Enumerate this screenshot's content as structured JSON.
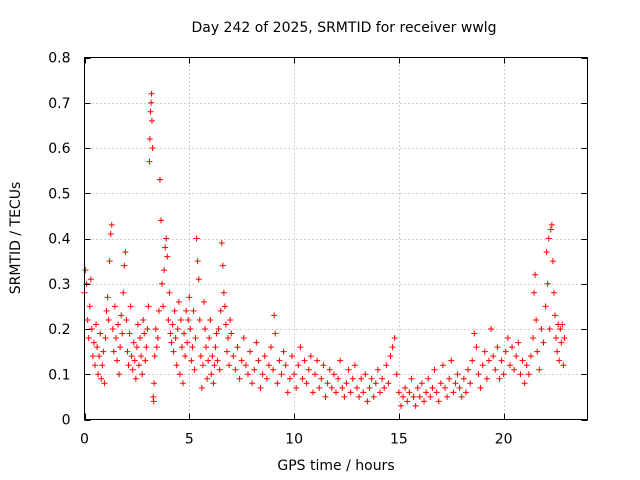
{
  "chart_data": {
    "type": "scatter",
    "title": "Day 242 of 2025, SRMTID for receiver wwlg",
    "xlabel": "GPS time / hours",
    "ylabel": "SRMTID / TECUs",
    "xlim": [
      0,
      24
    ],
    "ylim": [
      0,
      0.8
    ],
    "xticks": [
      0,
      5,
      10,
      15,
      20
    ],
    "xtick_labels": [
      "0",
      "5",
      "10",
      "15",
      "20"
    ],
    "yticks": [
      0,
      0.1,
      0.2,
      0.3,
      0.4,
      0.5,
      0.6,
      0.7,
      0.8
    ],
    "ytick_labels": [
      "0",
      "0.1",
      "0.2",
      "0.3",
      "0.4",
      "0.5",
      "0.6",
      "0.7",
      "0.8"
    ],
    "grid": true,
    "marker": "plus",
    "color": "#ff0000",
    "series": [
      {
        "name": "SRMTID",
        "points": [
          [
            0.0,
            0.28
          ],
          [
            0.05,
            0.33
          ],
          [
            0.1,
            0.3
          ],
          [
            0.15,
            0.22
          ],
          [
            0.2,
            0.18
          ],
          [
            0.25,
            0.25
          ],
          [
            0.3,
            0.31
          ],
          [
            0.35,
            0.2
          ],
          [
            0.4,
            0.14
          ],
          [
            0.45,
            0.17
          ],
          [
            0.5,
            0.12
          ],
          [
            0.55,
            0.21
          ],
          [
            0.6,
            0.16
          ],
          [
            0.65,
            0.1
          ],
          [
            0.7,
            0.14
          ],
          [
            0.75,
            0.19
          ],
          [
            0.8,
            0.09
          ],
          [
            0.85,
            0.12
          ],
          [
            0.9,
            0.15
          ],
          [
            0.95,
            0.08
          ],
          [
            1.0,
            0.18
          ],
          [
            1.05,
            0.24
          ],
          [
            1.1,
            0.27
          ],
          [
            1.15,
            0.22
          ],
          [
            1.2,
            0.35
          ],
          [
            1.25,
            0.41
          ],
          [
            1.3,
            0.43
          ],
          [
            1.35,
            0.2
          ],
          [
            1.4,
            0.15
          ],
          [
            1.45,
            0.25
          ],
          [
            1.5,
            0.18
          ],
          [
            1.55,
            0.13
          ],
          [
            1.6,
            0.21
          ],
          [
            1.65,
            0.1
          ],
          [
            1.7,
            0.16
          ],
          [
            1.75,
            0.23
          ],
          [
            1.8,
            0.19
          ],
          [
            1.85,
            0.28
          ],
          [
            1.9,
            0.34
          ],
          [
            1.95,
            0.37
          ],
          [
            2.0,
            0.22
          ],
          [
            2.05,
            0.15
          ],
          [
            2.1,
            0.12
          ],
          [
            2.15,
            0.19
          ],
          [
            2.2,
            0.25
          ],
          [
            2.25,
            0.14
          ],
          [
            2.3,
            0.11
          ],
          [
            2.35,
            0.17
          ],
          [
            2.4,
            0.13
          ],
          [
            2.45,
            0.09
          ],
          [
            2.5,
            0.16
          ],
          [
            2.55,
            0.21
          ],
          [
            2.6,
            0.12
          ],
          [
            2.65,
            0.18
          ],
          [
            2.7,
            0.14
          ],
          [
            2.75,
            0.1
          ],
          [
            2.8,
            0.22
          ],
          [
            2.85,
            0.19
          ],
          [
            2.9,
            0.13
          ],
          [
            2.95,
            0.16
          ],
          [
            3.0,
            0.2
          ],
          [
            3.05,
            0.25
          ],
          [
            3.1,
            0.57
          ],
          [
            3.12,
            0.62
          ],
          [
            3.15,
            0.68
          ],
          [
            3.18,
            0.7
          ],
          [
            3.2,
            0.72
          ],
          [
            3.22,
            0.66
          ],
          [
            3.25,
            0.6
          ],
          [
            3.28,
            0.05
          ],
          [
            3.3,
            0.04
          ],
          [
            3.32,
            0.08
          ],
          [
            3.35,
            0.14
          ],
          [
            3.4,
            0.2
          ],
          [
            3.45,
            0.16
          ],
          [
            3.5,
            0.18
          ],
          [
            3.55,
            0.24
          ],
          [
            3.6,
            0.53
          ],
          [
            3.65,
            0.44
          ],
          [
            3.7,
            0.3
          ],
          [
            3.75,
            0.25
          ],
          [
            3.8,
            0.33
          ],
          [
            3.85,
            0.38
          ],
          [
            3.9,
            0.4
          ],
          [
            3.95,
            0.36
          ],
          [
            4.0,
            0.22
          ],
          [
            4.05,
            0.28
          ],
          [
            4.1,
            0.19
          ],
          [
            4.15,
            0.17
          ],
          [
            4.2,
            0.21
          ],
          [
            4.25,
            0.15
          ],
          [
            4.3,
            0.24
          ],
          [
            4.35,
            0.18
          ],
          [
            4.4,
            0.12
          ],
          [
            4.45,
            0.2
          ],
          [
            4.5,
            0.26
          ],
          [
            4.55,
            0.1
          ],
          [
            4.6,
            0.22
          ],
          [
            4.65,
            0.16
          ],
          [
            4.7,
            0.08
          ],
          [
            4.75,
            0.19
          ],
          [
            4.8,
            0.14
          ],
          [
            4.85,
            0.24
          ],
          [
            4.9,
            0.17
          ],
          [
            4.95,
            0.22
          ],
          [
            5.0,
            0.27
          ],
          [
            5.05,
            0.2
          ],
          [
            5.1,
            0.13
          ],
          [
            5.15,
            0.16
          ],
          [
            5.2,
            0.24
          ],
          [
            5.25,
            0.11
          ],
          [
            5.3,
            0.18
          ],
          [
            5.35,
            0.4
          ],
          [
            5.4,
            0.35
          ],
          [
            5.45,
            0.31
          ],
          [
            5.5,
            0.22
          ],
          [
            5.55,
            0.14
          ],
          [
            5.6,
            0.07
          ],
          [
            5.65,
            0.12
          ],
          [
            5.7,
            0.26
          ],
          [
            5.75,
            0.2
          ],
          [
            5.8,
            0.16
          ],
          [
            5.85,
            0.09
          ],
          [
            5.9,
            0.13
          ],
          [
            5.95,
            0.18
          ],
          [
            6.0,
            0.22
          ],
          [
            6.05,
            0.1
          ],
          [
            6.1,
            0.14
          ],
          [
            6.15,
            0.08
          ],
          [
            6.2,
            0.12
          ],
          [
            6.25,
            0.16
          ],
          [
            6.3,
            0.19
          ],
          [
            6.35,
            0.13
          ],
          [
            6.4,
            0.2
          ],
          [
            6.45,
            0.11
          ],
          [
            6.5,
            0.24
          ],
          [
            6.55,
            0.39
          ],
          [
            6.6,
            0.34
          ],
          [
            6.65,
            0.28
          ],
          [
            6.7,
            0.25
          ],
          [
            6.75,
            0.21
          ],
          [
            6.8,
            0.15
          ],
          [
            6.85,
            0.18
          ],
          [
            6.9,
            0.12
          ],
          [
            6.95,
            0.22
          ],
          [
            7.0,
            0.19
          ],
          [
            7.1,
            0.14
          ],
          [
            7.2,
            0.11
          ],
          [
            7.3,
            0.16
          ],
          [
            7.4,
            0.09
          ],
          [
            7.5,
            0.13
          ],
          [
            7.6,
            0.18
          ],
          [
            7.7,
            0.12
          ],
          [
            7.8,
            0.1
          ],
          [
            7.9,
            0.15
          ],
          [
            8.0,
            0.08
          ],
          [
            8.1,
            0.11
          ],
          [
            8.2,
            0.17
          ],
          [
            8.3,
            0.13
          ],
          [
            8.4,
            0.07
          ],
          [
            8.5,
            0.1
          ],
          [
            8.6,
            0.14
          ],
          [
            8.7,
            0.09
          ],
          [
            8.8,
            0.12
          ],
          [
            8.9,
            0.16
          ],
          [
            9.0,
            0.11
          ],
          [
            9.05,
            0.23
          ],
          [
            9.1,
            0.19
          ],
          [
            9.2,
            0.08
          ],
          [
            9.3,
            0.13
          ],
          [
            9.4,
            0.1
          ],
          [
            9.5,
            0.15
          ],
          [
            9.6,
            0.12
          ],
          [
            9.7,
            0.06
          ],
          [
            9.8,
            0.09
          ],
          [
            9.9,
            0.14
          ],
          [
            10.0,
            0.1
          ],
          [
            10.1,
            0.07
          ],
          [
            10.2,
            0.12
          ],
          [
            10.3,
            0.16
          ],
          [
            10.4,
            0.09
          ],
          [
            10.5,
            0.13
          ],
          [
            10.6,
            0.08
          ],
          [
            10.7,
            0.11
          ],
          [
            10.8,
            0.14
          ],
          [
            10.9,
            0.06
          ],
          [
            11.0,
            0.1
          ],
          [
            11.1,
            0.13
          ],
          [
            11.2,
            0.07
          ],
          [
            11.3,
            0.09
          ],
          [
            11.4,
            0.12
          ],
          [
            11.5,
            0.05
          ],
          [
            11.6,
            0.08
          ],
          [
            11.7,
            0.11
          ],
          [
            11.8,
            0.07
          ],
          [
            11.9,
            0.1
          ],
          [
            12.0,
            0.06
          ],
          [
            12.1,
            0.09
          ],
          [
            12.2,
            0.13
          ],
          [
            12.3,
            0.07
          ],
          [
            12.4,
            0.05
          ],
          [
            12.5,
            0.08
          ],
          [
            12.6,
            0.11
          ],
          [
            12.7,
            0.06
          ],
          [
            12.8,
            0.09
          ],
          [
            12.9,
            0.12
          ],
          [
            13.0,
            0.07
          ],
          [
            13.1,
            0.05
          ],
          [
            13.2,
            0.09
          ],
          [
            13.3,
            0.06
          ],
          [
            13.4,
            0.1
          ],
          [
            13.5,
            0.04
          ],
          [
            13.6,
            0.07
          ],
          [
            13.7,
            0.09
          ],
          [
            13.8,
            0.05
          ],
          [
            13.9,
            0.08
          ],
          [
            14.0,
            0.11
          ],
          [
            14.1,
            0.06
          ],
          [
            14.2,
            0.09
          ],
          [
            14.3,
            0.07
          ],
          [
            14.4,
            0.12
          ],
          [
            14.5,
            0.08
          ],
          [
            14.6,
            0.14
          ],
          [
            14.7,
            0.16
          ],
          [
            14.8,
            0.18
          ],
          [
            14.9,
            0.1
          ],
          [
            15.0,
            0.06
          ],
          [
            15.1,
            0.03
          ],
          [
            15.2,
            0.05
          ],
          [
            15.3,
            0.07
          ],
          [
            15.4,
            0.04
          ],
          [
            15.5,
            0.06
          ],
          [
            15.6,
            0.09
          ],
          [
            15.7,
            0.05
          ],
          [
            15.8,
            0.03
          ],
          [
            15.9,
            0.07
          ],
          [
            16.0,
            0.05
          ],
          [
            16.1,
            0.08
          ],
          [
            16.2,
            0.04
          ],
          [
            16.3,
            0.06
          ],
          [
            16.4,
            0.09
          ],
          [
            16.5,
            0.05
          ],
          [
            16.6,
            0.07
          ],
          [
            16.7,
            0.11
          ],
          [
            16.8,
            0.06
          ],
          [
            16.9,
            0.04
          ],
          [
            17.0,
            0.08
          ],
          [
            17.1,
            0.12
          ],
          [
            17.2,
            0.07
          ],
          [
            17.3,
            0.05
          ],
          [
            17.4,
            0.09
          ],
          [
            17.5,
            0.13
          ],
          [
            17.6,
            0.06
          ],
          [
            17.7,
            0.08
          ],
          [
            17.8,
            0.1
          ],
          [
            17.9,
            0.07
          ],
          [
            18.0,
            0.05
          ],
          [
            18.1,
            0.09
          ],
          [
            18.2,
            0.06
          ],
          [
            18.3,
            0.11
          ],
          [
            18.4,
            0.08
          ],
          [
            18.5,
            0.13
          ],
          [
            18.6,
            0.19
          ],
          [
            18.7,
            0.16
          ],
          [
            18.8,
            0.1
          ],
          [
            18.9,
            0.07
          ],
          [
            19.0,
            0.12
          ],
          [
            19.1,
            0.15
          ],
          [
            19.2,
            0.09
          ],
          [
            19.3,
            0.13
          ],
          [
            19.4,
            0.2
          ],
          [
            19.5,
            0.14
          ],
          [
            19.6,
            0.11
          ],
          [
            19.7,
            0.16
          ],
          [
            19.8,
            0.09
          ],
          [
            19.9,
            0.13
          ],
          [
            20.0,
            0.1
          ],
          [
            20.1,
            0.15
          ],
          [
            20.2,
            0.18
          ],
          [
            20.3,
            0.12
          ],
          [
            20.4,
            0.16
          ],
          [
            20.5,
            0.11
          ],
          [
            20.6,
            0.14
          ],
          [
            20.7,
            0.17
          ],
          [
            20.8,
            0.1
          ],
          [
            20.9,
            0.13
          ],
          [
            21.0,
            0.08
          ],
          [
            21.1,
            0.12
          ],
          [
            21.2,
            0.1
          ],
          [
            21.3,
            0.14
          ],
          [
            21.4,
            0.18
          ],
          [
            21.45,
            0.28
          ],
          [
            21.5,
            0.32
          ],
          [
            21.55,
            0.22
          ],
          [
            21.6,
            0.15
          ],
          [
            21.7,
            0.11
          ],
          [
            21.8,
            0.2
          ],
          [
            21.9,
            0.17
          ],
          [
            22.0,
            0.25
          ],
          [
            22.05,
            0.37
          ],
          [
            22.1,
            0.3
          ],
          [
            22.15,
            0.4
          ],
          [
            22.2,
            0.2
          ],
          [
            22.25,
            0.42
          ],
          [
            22.3,
            0.43
          ],
          [
            22.35,
            0.35
          ],
          [
            22.4,
            0.28
          ],
          [
            22.45,
            0.23
          ],
          [
            22.5,
            0.18
          ],
          [
            22.55,
            0.15
          ],
          [
            22.6,
            0.21
          ],
          [
            22.65,
            0.13
          ],
          [
            22.7,
            0.2
          ],
          [
            22.75,
            0.17
          ],
          [
            22.8,
            0.21
          ],
          [
            22.85,
            0.12
          ],
          [
            22.9,
            0.18
          ]
        ]
      }
    ]
  }
}
